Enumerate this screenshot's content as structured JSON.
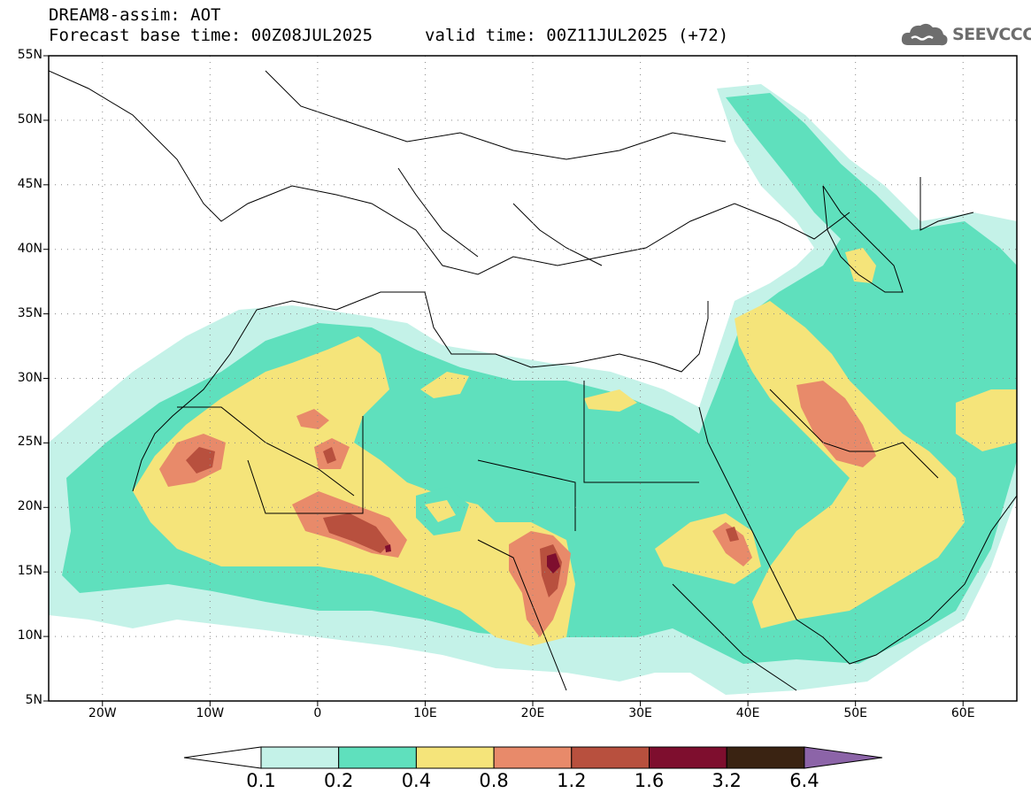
{
  "header": {
    "title": "DREAM8-assim: AOT",
    "base_time": "Forecast base time: 00Z08JUL2025",
    "valid_time": "valid time: 00Z11JUL2025 (+72)"
  },
  "logo": {
    "text": "SEEVCCC",
    "icon": "cloud-logo-icon",
    "color": "#6d6d6d"
  },
  "map": {
    "lat_labels": [
      "55N",
      "50N",
      "45N",
      "40N",
      "35N",
      "30N",
      "25N",
      "20N",
      "15N",
      "10N",
      "5N"
    ],
    "lon_labels": [
      "20W",
      "10W",
      "0",
      "10E",
      "20E",
      "30E",
      "40E",
      "50E",
      "60E"
    ],
    "lat_range": [
      5,
      55
    ],
    "lon_range": [
      -25,
      65
    ],
    "grid": "dotted"
  },
  "colorbar": {
    "levels": [
      "0.1",
      "0.2",
      "0.4",
      "0.8",
      "1.2",
      "1.6",
      "3.2",
      "6.4"
    ],
    "colors": [
      "#c4f2e8",
      "#5fe0bd",
      "#f5e47a",
      "#e88a6a",
      "#b8503e",
      "#7e0e2e",
      "#3a2312",
      "#8c64a8"
    ],
    "below_color": "#ffffff"
  }
}
